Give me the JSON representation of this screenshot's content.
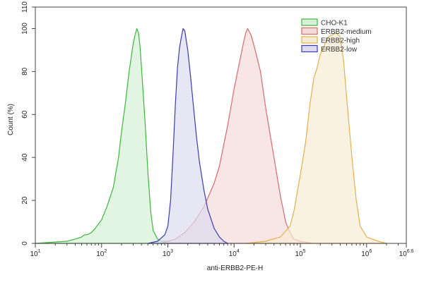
{
  "chart_data": {
    "type": "area",
    "title": "",
    "xlabel": "anti-ERBB2-PE-H",
    "ylabel": "Count  (%)",
    "x_scale": "log10",
    "xlim": [
      10,
      3981071
    ],
    "ylim": [
      0,
      110
    ],
    "x_ticks": [
      {
        "base": "10",
        "exp": "1"
      },
      {
        "base": "10",
        "exp": "2"
      },
      {
        "base": "10",
        "exp": "3"
      },
      {
        "base": "10",
        "exp": "4"
      },
      {
        "base": "10",
        "exp": "5"
      },
      {
        "base": "10",
        "exp": "6"
      },
      {
        "base": "10",
        "exp": "6.6"
      }
    ],
    "y_ticks": [
      "0",
      "20",
      "40",
      "60",
      "80",
      "100",
      "110"
    ],
    "grid": false,
    "legend_position": "top-right",
    "series": [
      {
        "name": "CHO-K1",
        "color": "#3cb83c",
        "fill": "#d6efd6",
        "x": [
          10,
          30,
          40,
          50,
          55,
          60,
          70,
          80,
          100,
          120,
          150,
          180,
          200,
          230,
          260,
          300,
          320,
          340,
          360,
          380,
          400,
          450,
          500,
          550,
          600,
          700,
          800,
          1000,
          1200,
          1500
        ],
        "y": [
          0,
          1,
          2,
          3,
          4,
          4,
          5,
          7,
          11,
          17,
          26,
          40,
          52,
          66,
          80,
          93,
          97,
          100,
          98,
          92,
          82,
          58,
          33,
          15,
          6,
          2,
          1,
          1,
          0,
          0
        ]
      },
      {
        "name": "ERBB2-medium",
        "color": "#d96b6b",
        "fill": "#f5dada",
        "x": [
          800,
          1000,
          1300,
          1800,
          2500,
          3500,
          5000,
          6000,
          8000,
          10000,
          12000,
          14000,
          15000,
          16000,
          18000,
          20000,
          25000,
          30000,
          40000,
          50000,
          60000,
          70000,
          80000,
          100000,
          150000
        ],
        "y": [
          0,
          1,
          2,
          5,
          10,
          17,
          28,
          36,
          55,
          72,
          84,
          94,
          98,
          100,
          97,
          92,
          80,
          63,
          40,
          22,
          10,
          5,
          2,
          1,
          0
        ]
      },
      {
        "name": "ERBB2-high",
        "color": "#e3b14f",
        "fill": "#f7ecd3",
        "x": [
          15000,
          30000,
          50000,
          70000,
          80000,
          100000,
          120000,
          140000,
          160000,
          180000,
          200000,
          230000,
          260000,
          300000,
          350000,
          400000,
          450000,
          500000,
          600000,
          700000,
          800000,
          1000000,
          1500000,
          2000000
        ],
        "y": [
          0,
          1,
          3,
          8,
          15,
          32,
          47,
          65,
          77,
          82,
          88,
          92,
          96,
          97,
          98,
          96,
          85,
          68,
          40,
          20,
          8,
          3,
          1,
          0
        ]
      },
      {
        "name": "ERBB2-low",
        "color": "#3b3bb3",
        "fill": "#dcdcf0",
        "x": [
          500,
          700,
          900,
          1000,
          1100,
          1200,
          1300,
          1400,
          1500,
          1600,
          1700,
          1800,
          2000,
          2200,
          2400,
          2700,
          3000,
          3500,
          4000,
          5000,
          6000,
          7000,
          8000
        ],
        "y": [
          0,
          1,
          4,
          8,
          20,
          42,
          65,
          82,
          91,
          96,
          100,
          99,
          90,
          78,
          66,
          50,
          38,
          25,
          16,
          7,
          3,
          1,
          0
        ]
      }
    ]
  }
}
